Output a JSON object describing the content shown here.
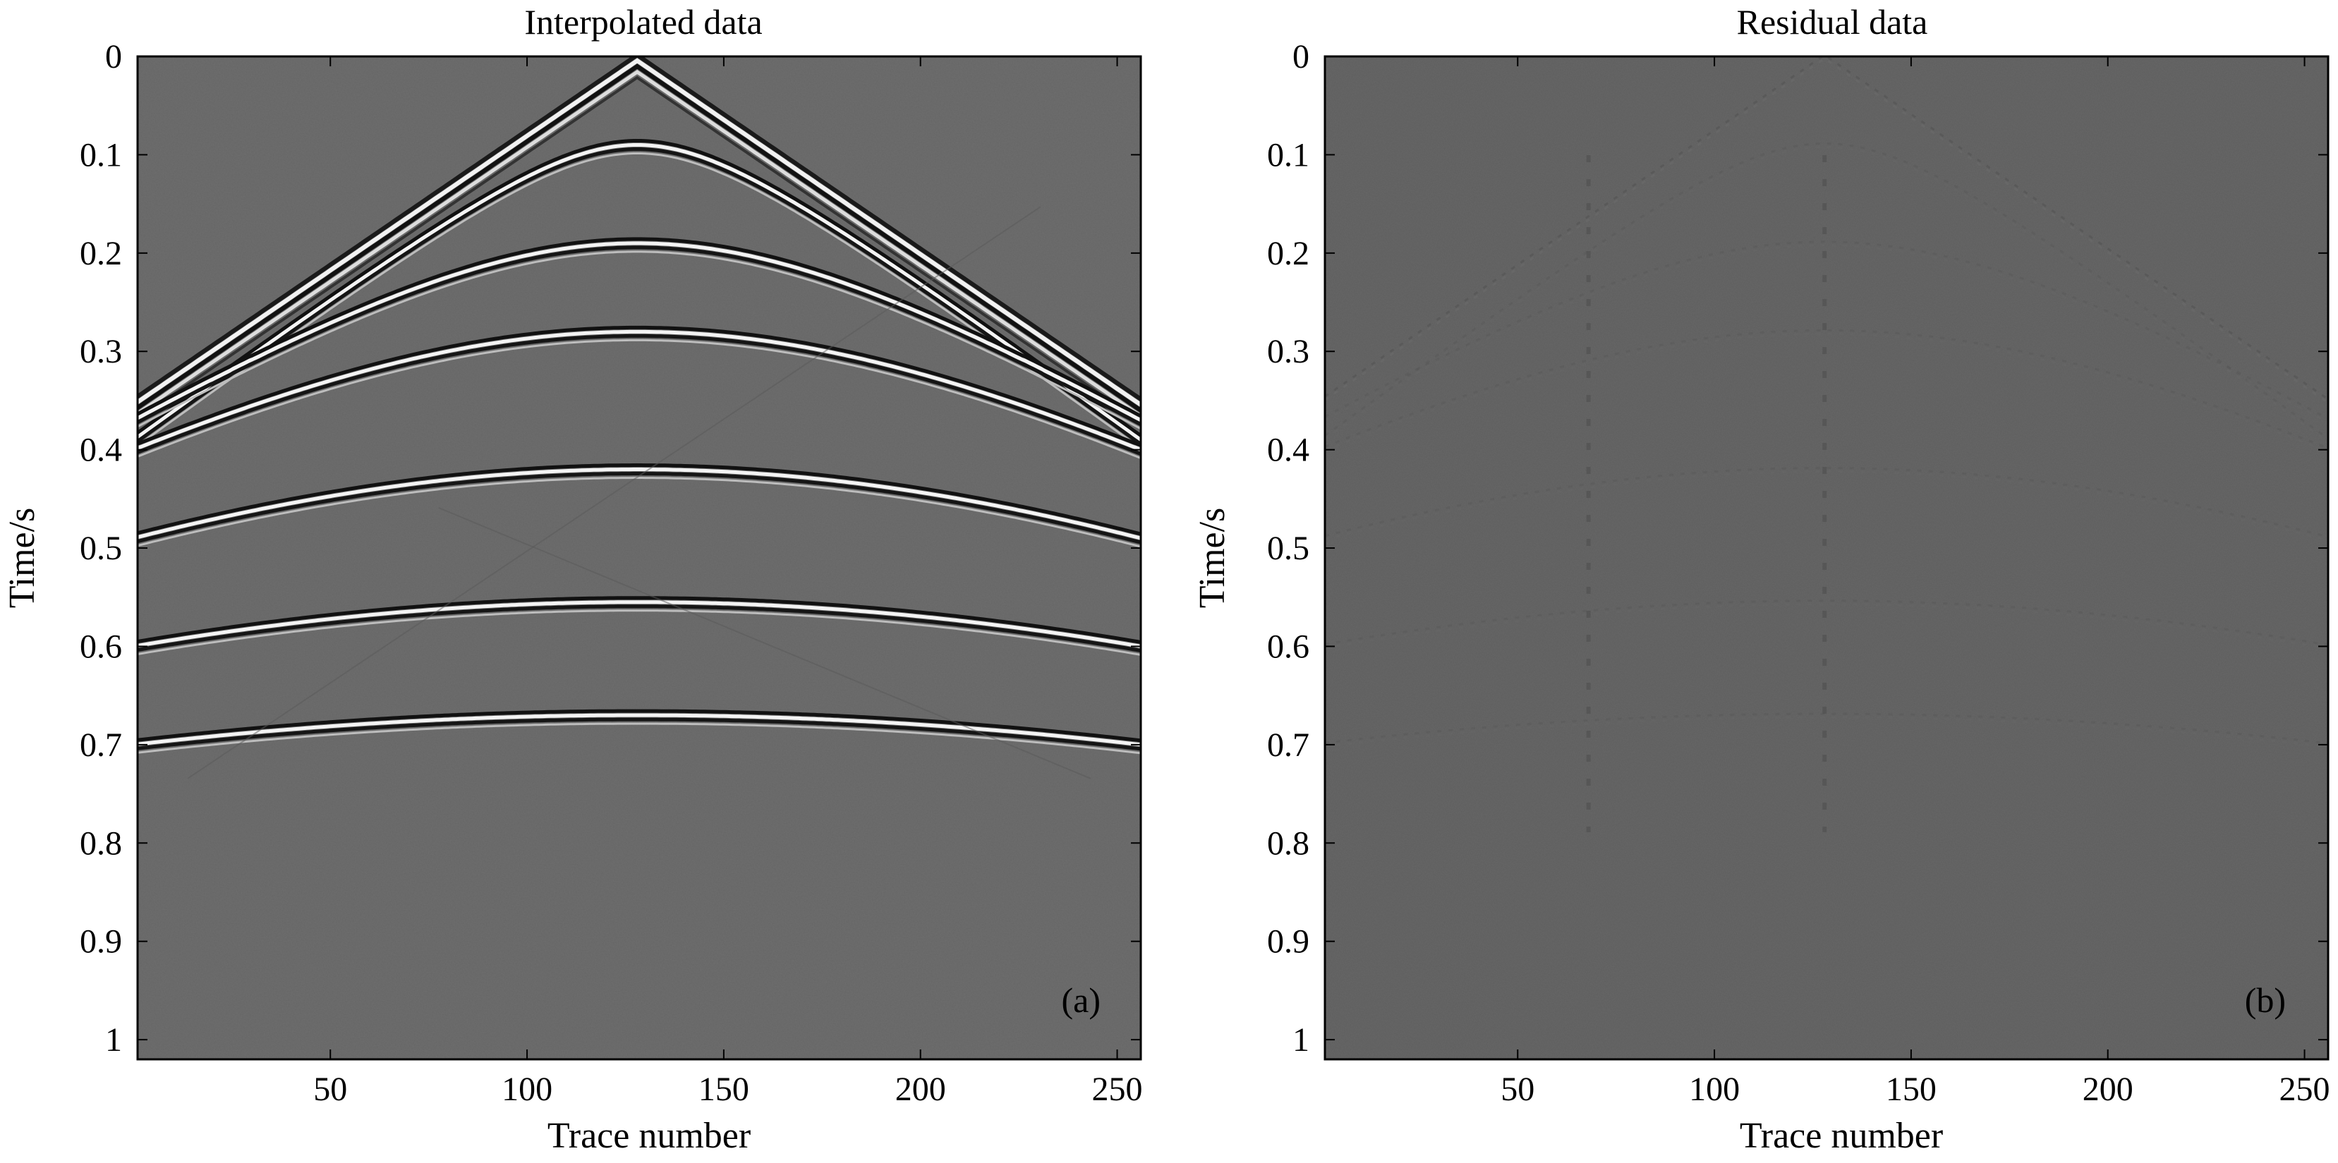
{
  "chart_data": [
    {
      "type": "heatmap",
      "panel_label": "(a)",
      "title": "Interpolated data",
      "xlabel": "Trace number",
      "ylabel": "Time/s",
      "xlim": [
        1,
        256
      ],
      "ylim": [
        0,
        1.02
      ],
      "y_inverted": true,
      "colormap": "gray",
      "grid": false,
      "x_ticks": [
        50,
        100,
        150,
        200,
        250
      ],
      "y_ticks": [
        0,
        0.1,
        0.2,
        0.3,
        0.4,
        0.5,
        0.6,
        0.7,
        0.8,
        0.9,
        1
      ],
      "x_tick_labels": [
        "50",
        "100",
        "150",
        "200",
        "250"
      ],
      "y_tick_labels": [
        "0",
        "0.1",
        "0.2",
        "0.3",
        "0.4",
        "0.5",
        "0.6",
        "0.7",
        "0.8",
        "0.9",
        "1"
      ],
      "apex_trace": 128,
      "direct_wave": {
        "t0": 0.0,
        "edge_time": 0.35
      },
      "reflection_events": [
        {
          "t0": 0.09,
          "edge_time": 0.39
        },
        {
          "t0": 0.19,
          "edge_time": 0.37
        },
        {
          "t0": 0.28,
          "edge_time": 0.4
        },
        {
          "t0": 0.42,
          "edge_time": 0.49
        },
        {
          "t0": 0.555,
          "edge_time": 0.6
        },
        {
          "t0": 0.67,
          "edge_time": 0.7
        }
      ]
    },
    {
      "type": "heatmap",
      "panel_label": "(b)",
      "title": "Residual data",
      "xlabel": "Trace number",
      "ylabel": "Time/s",
      "xlim": [
        1,
        256
      ],
      "ylim": [
        0,
        1.02
      ],
      "y_inverted": true,
      "colormap": "gray",
      "grid": false,
      "x_ticks": [
        50,
        100,
        150,
        200,
        250
      ],
      "y_ticks": [
        0,
        0.1,
        0.2,
        0.3,
        0.4,
        0.5,
        0.6,
        0.7,
        0.8,
        0.9,
        1
      ],
      "x_tick_labels": [
        "50",
        "100",
        "150",
        "200",
        "250"
      ],
      "y_tick_labels": [
        "0",
        "0.1",
        "0.2",
        "0.3",
        "0.4",
        "0.5",
        "0.6",
        "0.7",
        "0.8",
        "0.9",
        "1"
      ]
    }
  ]
}
